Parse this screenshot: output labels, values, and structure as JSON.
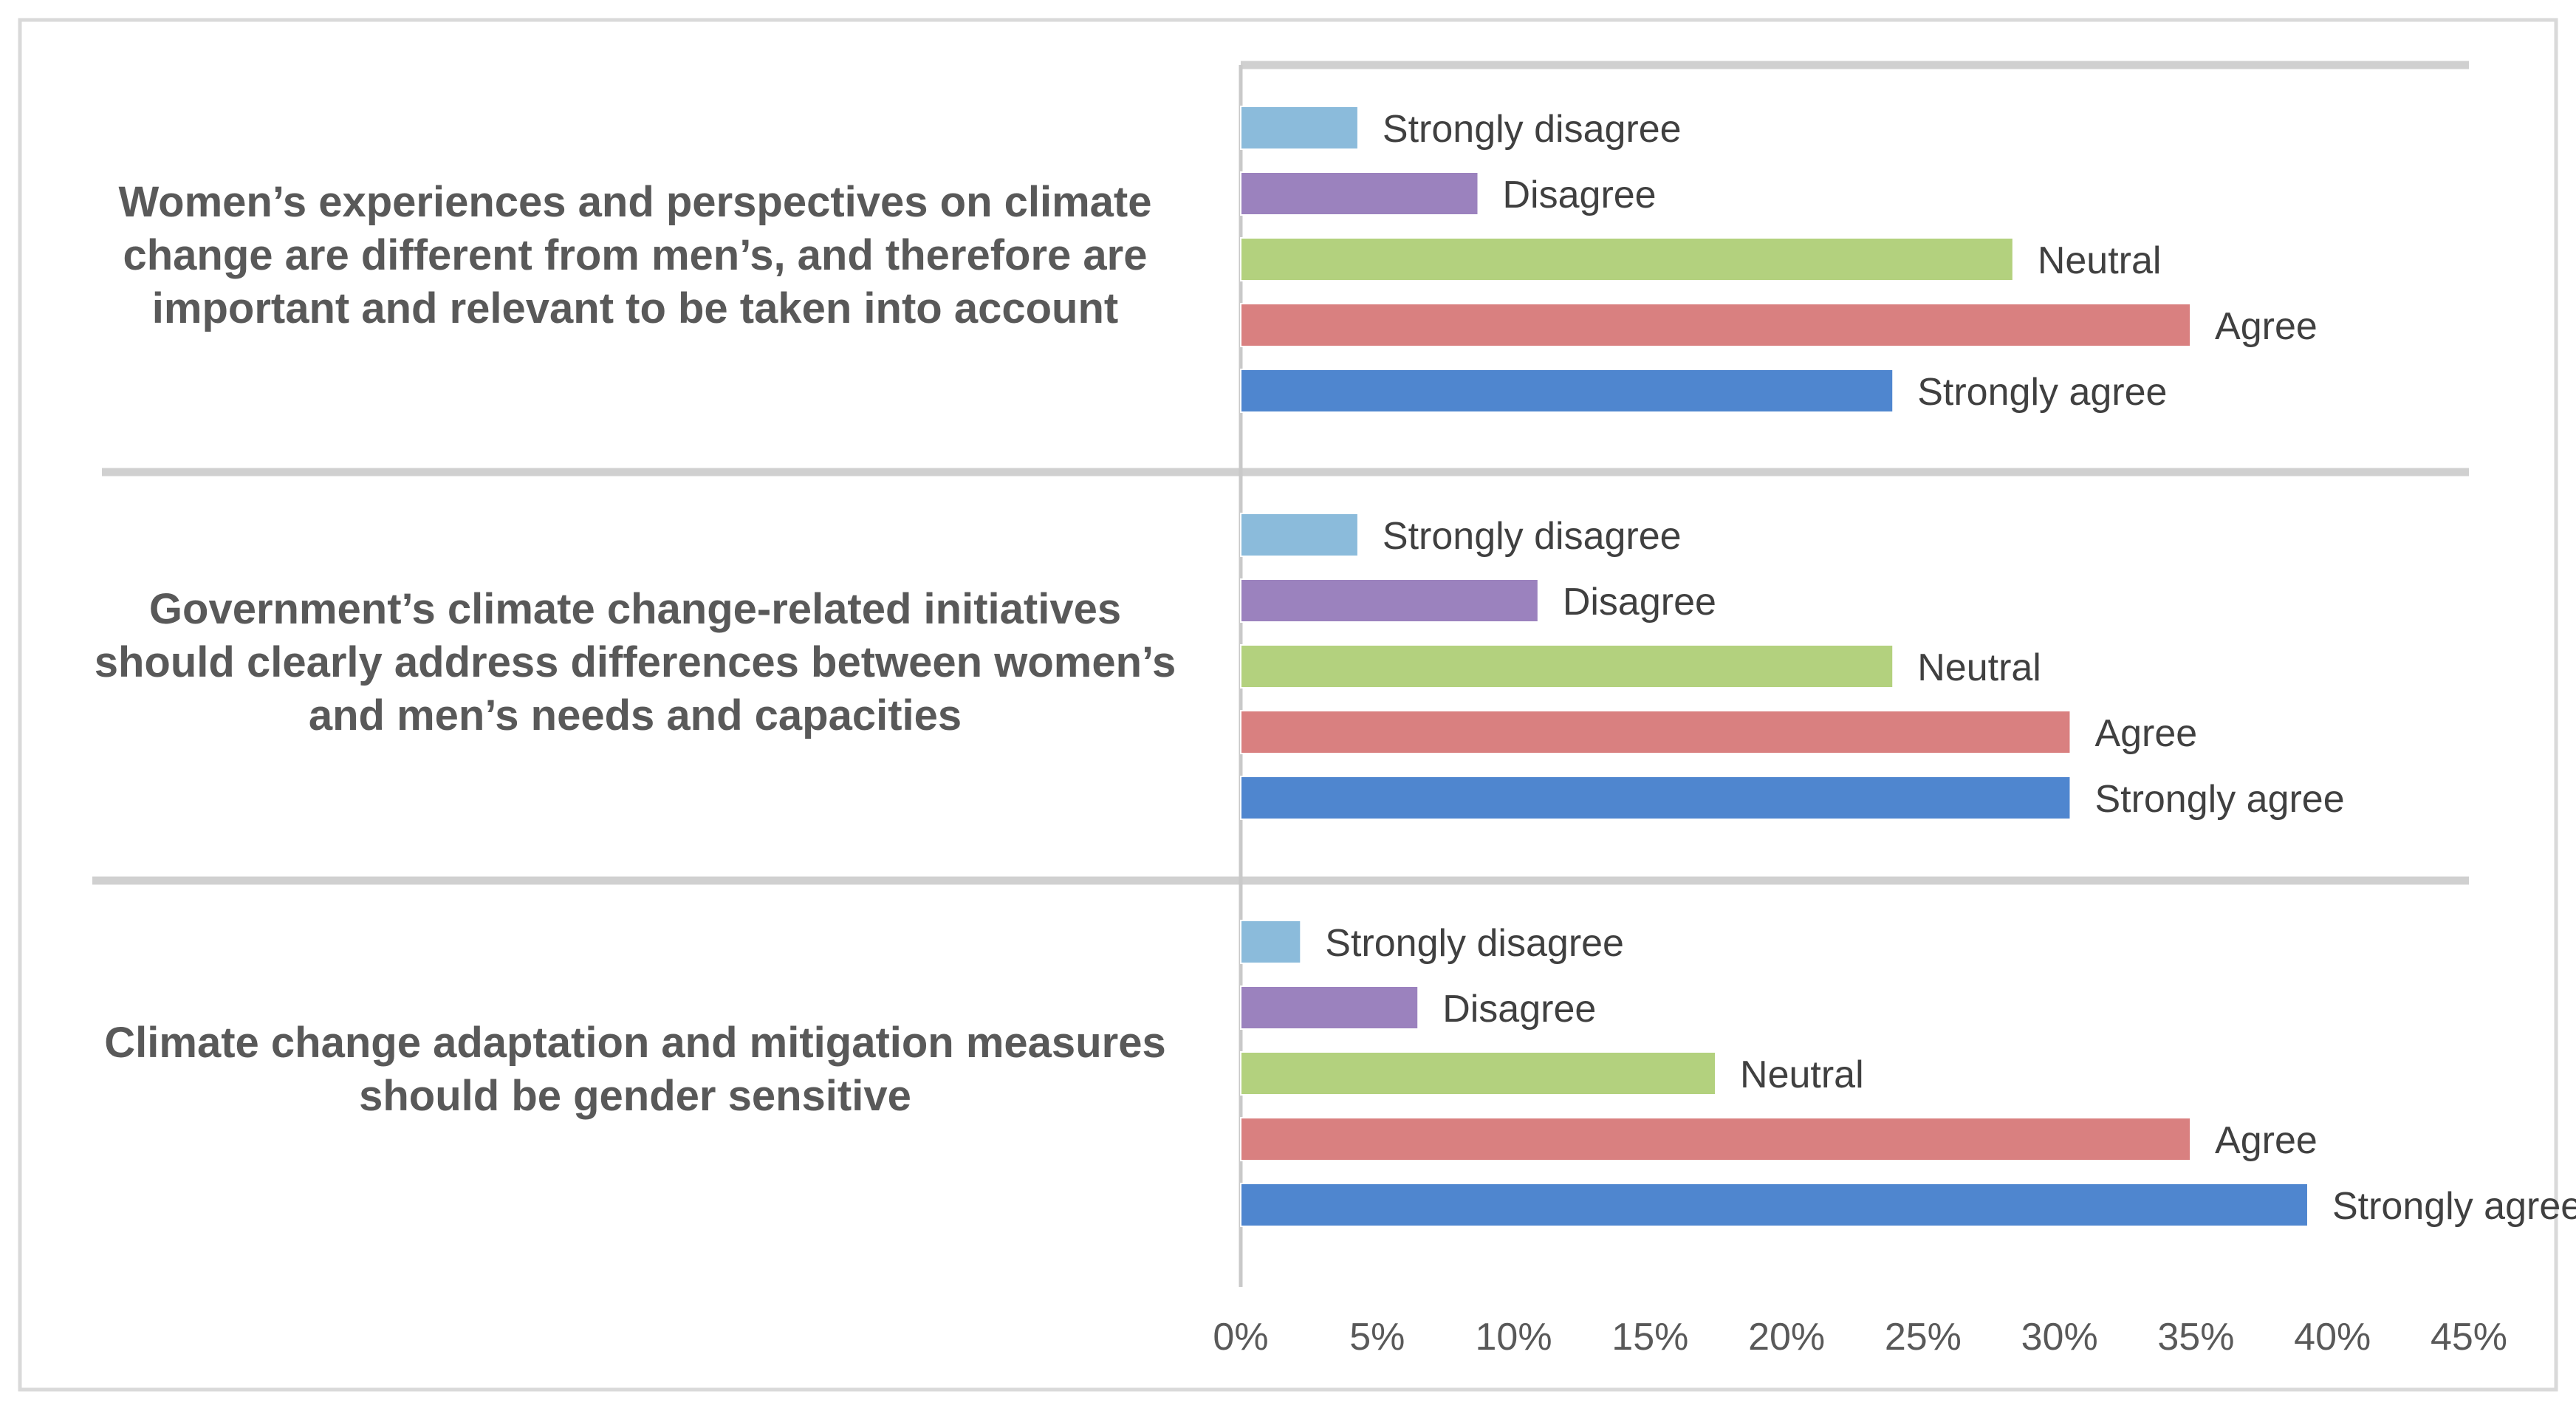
{
  "chart_data": {
    "type": "bar",
    "orientation": "horizontal",
    "title": "",
    "xlabel": "",
    "ylabel": "",
    "xlim": [
      0,
      45
    ],
    "x_ticks": [
      "0%",
      "5%",
      "10%",
      "15%",
      "20%",
      "25%",
      "30%",
      "35%",
      "40%",
      "45%"
    ],
    "x_tick_values": [
      0,
      5,
      10,
      15,
      20,
      25,
      30,
      35,
      40,
      45
    ],
    "grid": false,
    "legend": "none",
    "value_unit": "%",
    "groups": [
      {
        "label_lines": [
          "Women’s experiences and perspectives on climate",
          "change are different from men’s, and therefore are",
          "important and relevant to be taken into account"
        ],
        "bars": [
          {
            "category": "Strongly disagree",
            "value": 4.3
          },
          {
            "category": "Disagree",
            "value": 8.7
          },
          {
            "category": "Neutral",
            "value": 28.3
          },
          {
            "category": "Agree",
            "value": 34.8
          },
          {
            "category": "Strongly agree",
            "value": 23.9
          }
        ]
      },
      {
        "label_lines": [
          "Government’s climate change-related initiatives",
          "should clearly address differences between women’s",
          "and men’s needs and capacities"
        ],
        "bars": [
          {
            "category": "Strongly disagree",
            "value": 4.3
          },
          {
            "category": "Disagree",
            "value": 10.9
          },
          {
            "category": "Neutral",
            "value": 23.9
          },
          {
            "category": "Agree",
            "value": 30.4
          },
          {
            "category": "Strongly agree",
            "value": 30.4
          }
        ]
      },
      {
        "label_lines": [
          "Climate change adaptation and mitigation measures",
          "should be gender sensitive"
        ],
        "bars": [
          {
            "category": "Strongly disagree",
            "value": 2.2
          },
          {
            "category": "Disagree",
            "value": 6.5
          },
          {
            "category": "Neutral",
            "value": 17.4
          },
          {
            "category": "Agree",
            "value": 34.8
          },
          {
            "category": "Strongly agree",
            "value": 39.1
          }
        ]
      }
    ],
    "colors": {
      "Strongly disagree": "#8bbbdb",
      "Disagree": "#9b82be",
      "Neutral": "#b3d17e",
      "Agree": "#d98080",
      "Strongly agree": "#4f86cf"
    }
  }
}
